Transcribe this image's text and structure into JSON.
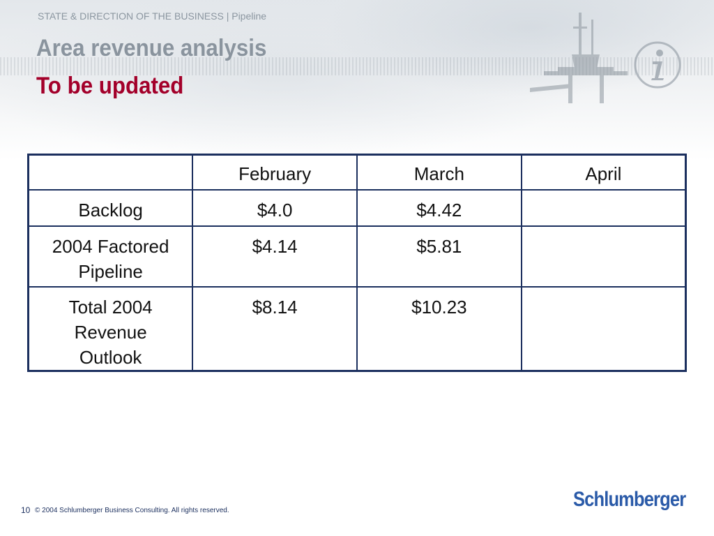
{
  "header": {
    "breadcrumb": "STATE & DIRECTION OF THE BUSINESS | Pipeline",
    "title": "Area revenue analysis",
    "subtitle": "To be updated"
  },
  "table": {
    "columns": [
      "",
      "February",
      "March",
      "April"
    ],
    "rows": [
      {
        "label": "Backlog",
        "february": "$4.0",
        "march": "$4.42",
        "april": ""
      },
      {
        "label_line1": "2004 Factored",
        "label_line2": "Pipeline",
        "february": "$4.14",
        "march": "$5.81",
        "april": ""
      },
      {
        "label_line1": "Total 2004",
        "label_line2": "Revenue",
        "label_line3": "Outlook",
        "february": "$8.14",
        "march": "$10.23",
        "april": ""
      }
    ]
  },
  "footer": {
    "page_number": "10",
    "copyright": "© 2004 Schlumberger Business Consulting. All rights reserved.",
    "logo": "Schlumberger"
  },
  "colors": {
    "title": "#8a949e",
    "subtitle": "#a3002a",
    "table_border": "#1b2f5e",
    "logo": "#2a5aa8"
  },
  "icons": [
    "oil-rig-image",
    "info-icon"
  ]
}
